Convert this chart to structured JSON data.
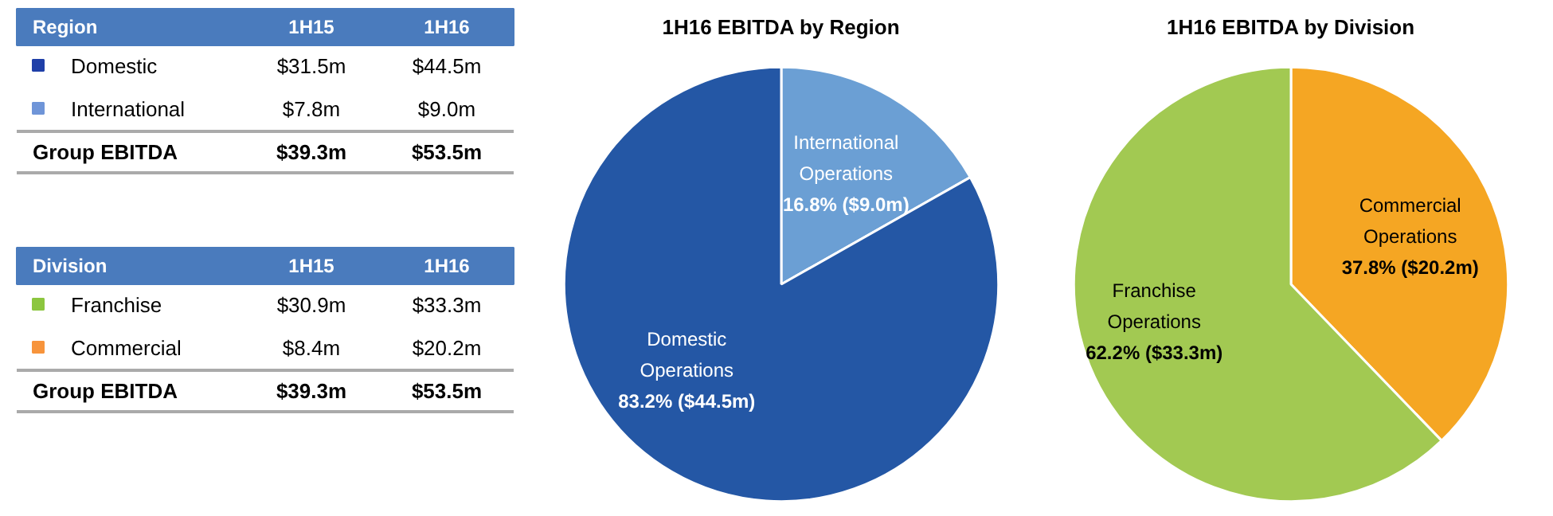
{
  "chart_data": [
    {
      "type": "other",
      "title": "Region",
      "categories": [
        "Domestic",
        "International",
        "Group EBITDA"
      ],
      "colors": [
        "#1f3fa8",
        "#6f95d8",
        null
      ],
      "y_categories": [
        "1H15",
        "1H16"
      ],
      "cell_labels": [
        [
          "$31.5m",
          "$7.8m",
          "$39.3m"
        ],
        [
          "$44.5m",
          "$9.0m",
          "$53.5m"
        ]
      ]
    },
    {
      "type": "other",
      "title": "Division",
      "categories": [
        "Franchise",
        "Commercial",
        "Group EBITDA"
      ],
      "colors": [
        "#8cc63f",
        "#f7943c",
        null
      ],
      "y_categories": [
        "1H15",
        "1H16"
      ],
      "cell_labels": [
        [
          "$30.9m",
          "$8.4m",
          "$39.3m"
        ],
        [
          "$33.3m",
          "$20.2m",
          "$53.5m"
        ]
      ]
    },
    {
      "type": "pie",
      "title": "1H16 EBITDA by Region",
      "categories": [
        "International Operations",
        "Domestic Operations"
      ],
      "values": [
        16.8,
        83.2
      ],
      "colors": [
        "#6b9fd4",
        "#2457a5"
      ],
      "value_labels": [
        "16.8% ($9.0m)",
        "83.2% ($44.5m)"
      ]
    },
    {
      "type": "pie",
      "title": "1H16 EBITDA by Division",
      "categories": [
        "Commercial Operations",
        "Franchise Operations"
      ],
      "values": [
        37.8,
        62.2
      ],
      "colors": [
        "#f5a623",
        "#a2c952"
      ],
      "value_labels": [
        "37.8% ($20.2m)",
        "62.2% ($33.3m)"
      ]
    }
  ]
}
